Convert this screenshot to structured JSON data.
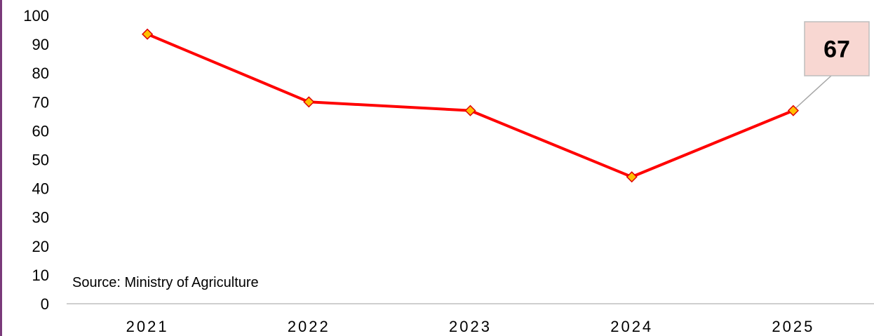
{
  "chart_data": {
    "type": "line",
    "categories": [
      "2021",
      "2022",
      "2023",
      "2024",
      "2025"
    ],
    "series": [
      {
        "values": [
          93.5,
          70,
          67,
          44,
          67
        ]
      }
    ],
    "y_ticks": [
      "0",
      "10",
      "20",
      "30",
      "40",
      "50",
      "60",
      "70",
      "80",
      "90",
      "100"
    ],
    "ylim": [
      0,
      100
    ],
    "grid": false,
    "annotation": {
      "label": "67",
      "category": "2025",
      "value": 67
    },
    "source": "Source: Ministry of Agriculture"
  },
  "colors": {
    "line": "#ff0000",
    "marker_fill": "#ffc000",
    "marker_stroke": "#e00000",
    "callout_fill": "#f8d7d2",
    "callout_stroke": "#bdbdbd",
    "leader": "#a6a6a6",
    "axis": "#bfbfbf",
    "frame": "#7a3a7a"
  }
}
